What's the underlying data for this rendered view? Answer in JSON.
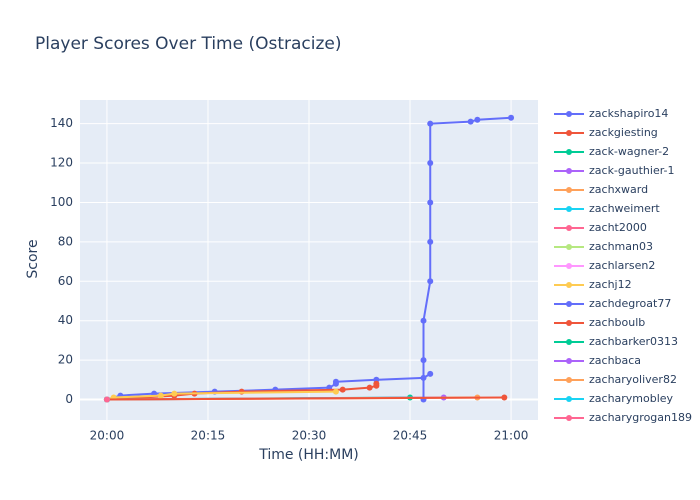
{
  "chart_data": {
    "type": "line",
    "title": "Player Scores Over Time (Ostracize)",
    "x_label": "Time (HH:MM)",
    "y_label": "Score",
    "xlim": [
      "19:56",
      "21:04"
    ],
    "xticks": [
      "20:00",
      "20:15",
      "20:30",
      "20:45",
      "21:00"
    ],
    "ylim": [
      -10.4,
      152
    ],
    "yticks": [
      0,
      20,
      40,
      60,
      80,
      100,
      120,
      140
    ],
    "grid": true,
    "legend": "right",
    "series": [
      {
        "name": "zackshapiro14",
        "color": "#636efa",
        "x": [
          "20:00",
          "20:02",
          "20:07",
          "20:16",
          "20:25",
          "20:33",
          "20:34",
          "20:34",
          "20:40",
          "20:47",
          "20:48"
        ],
        "values": [
          0,
          2,
          3,
          4,
          5,
          6,
          8,
          9,
          10,
          11,
          13
        ]
      },
      {
        "name": "zackgiesting",
        "color": "#ef553b",
        "x": [
          "20:00",
          "20:10",
          "20:13",
          "20:20",
          "20:35",
          "20:39",
          "20:40",
          "20:40"
        ],
        "values": [
          0,
          2,
          3,
          4,
          5,
          6,
          7,
          8
        ]
      },
      {
        "name": "zack-wagner-2",
        "color": "#00cc96",
        "x": [
          "20:00",
          "20:45"
        ],
        "values": [
          0,
          1
        ]
      },
      {
        "name": "zack-gauthier-1",
        "color": "#ab63fa",
        "x": [
          "20:00",
          "20:50"
        ],
        "values": [
          0,
          1
        ]
      },
      {
        "name": "zachxward",
        "color": "#ffa15a",
        "x": [
          "20:00",
          "20:55"
        ],
        "values": [
          0,
          1
        ]
      },
      {
        "name": "zachweimert",
        "color": "#19d3f3",
        "x": [
          "20:00"
        ],
        "values": [
          0
        ]
      },
      {
        "name": "zacht2000",
        "color": "#ff6692",
        "x": [
          "20:00"
        ],
        "values": [
          0
        ]
      },
      {
        "name": "zachman03",
        "color": "#b6e880",
        "x": [
          "20:00"
        ],
        "values": [
          0
        ]
      },
      {
        "name": "zachlarsen2",
        "color": "#ff97ff",
        "x": [
          "20:00"
        ],
        "values": [
          0
        ]
      },
      {
        "name": "zachj12",
        "color": "#fecb52",
        "x": [
          "20:00",
          "20:01",
          "20:08",
          "20:10",
          "20:34"
        ],
        "values": [
          0,
          1,
          2,
          3,
          4
        ]
      },
      {
        "name": "zachdegroat77",
        "color": "#636efa",
        "x": [
          "20:47",
          "20:47",
          "20:47",
          "20:48",
          "20:48",
          "20:48",
          "20:48",
          "20:48",
          "20:54",
          "20:55",
          "21:00"
        ],
        "values": [
          0,
          20,
          40,
          60,
          80,
          100,
          120,
          140,
          141,
          142,
          143
        ]
      },
      {
        "name": "zachboulb",
        "color": "#ef553b",
        "x": [
          "20:00",
          "20:59"
        ],
        "values": [
          0,
          1
        ]
      },
      {
        "name": "zachbarker0313",
        "color": "#00cc96",
        "x": [
          "20:00"
        ],
        "values": [
          0
        ]
      },
      {
        "name": "zachbaca",
        "color": "#ab63fa",
        "x": [
          "20:00"
        ],
        "values": [
          0
        ]
      },
      {
        "name": "zacharyoliver82",
        "color": "#ffa15a",
        "x": [
          "20:00"
        ],
        "values": [
          0
        ]
      },
      {
        "name": "zacharymobley",
        "color": "#19d3f3",
        "x": [
          "20:00"
        ],
        "values": [
          0
        ]
      },
      {
        "name": "zacharygrogan189",
        "color": "#ff6692",
        "x": [
          "20:00"
        ],
        "values": [
          0
        ]
      }
    ]
  }
}
